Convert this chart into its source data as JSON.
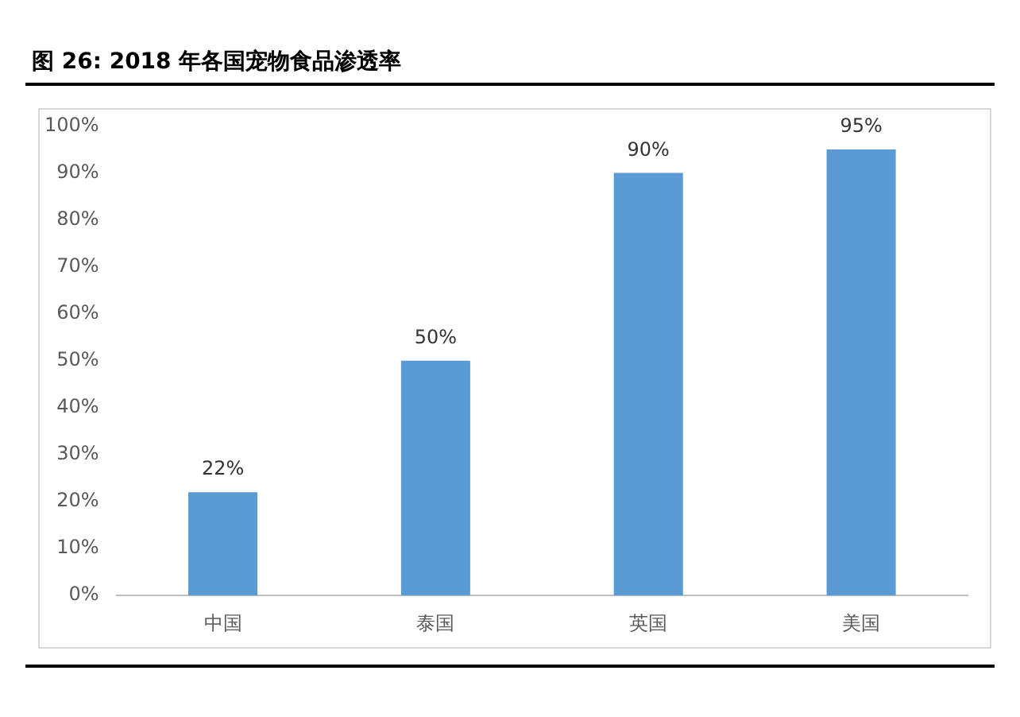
{
  "chart_data": {
    "type": "bar",
    "title": "图 26:  2018 年各国宠物食品渗透率",
    "categories": [
      "中国",
      "泰国",
      "英国",
      "美国"
    ],
    "values": [
      22,
      50,
      90,
      95
    ],
    "color": "#5b9bd5",
    "value_labels": [
      "22%",
      "50%",
      "90%",
      "95%"
    ],
    "ylim": [
      0,
      100
    ],
    "yticks": [
      {
        "value": 0,
        "label": "0%"
      },
      {
        "value": 10,
        "label": "10%"
      },
      {
        "value": 20,
        "label": "20%"
      },
      {
        "value": 30,
        "label": "30%"
      },
      {
        "value": 40,
        "label": "40%"
      },
      {
        "value": 50,
        "label": "50%"
      },
      {
        "value": 60,
        "label": "60%"
      },
      {
        "value": 70,
        "label": "70%"
      },
      {
        "value": 80,
        "label": "80%"
      },
      {
        "value": 90,
        "label": "90%"
      },
      {
        "value": 100,
        "label": "100%"
      }
    ],
    "grid": false,
    "legend": false
  }
}
